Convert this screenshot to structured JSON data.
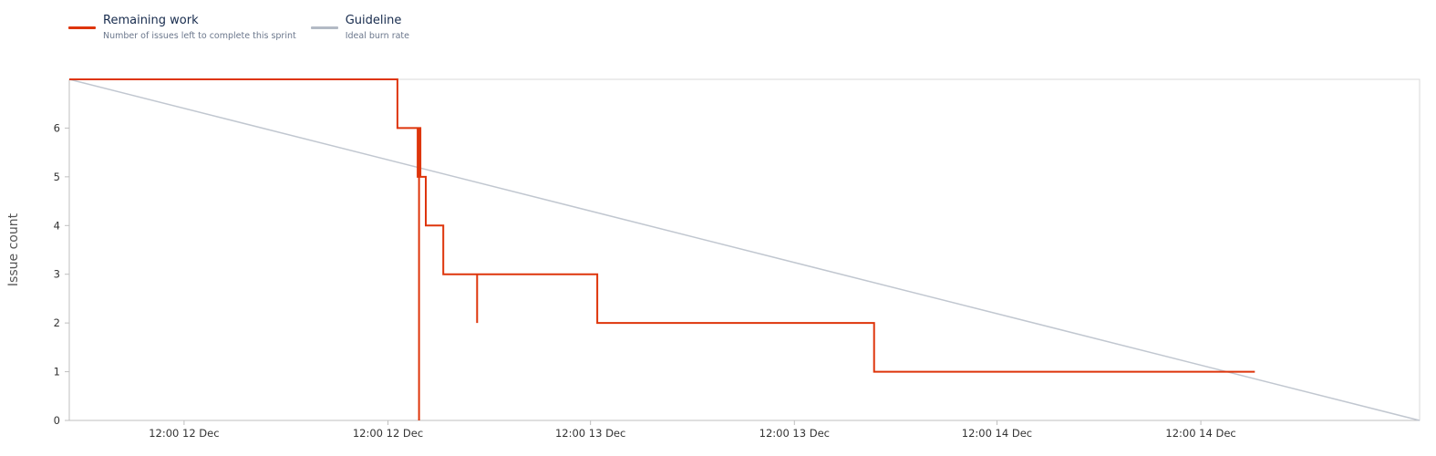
{
  "chart_data": {
    "type": "line",
    "ylabel": "Issue count",
    "ylim": [
      0,
      7
    ],
    "yticks": [
      0,
      1,
      2,
      3,
      4,
      5,
      6
    ],
    "xlim": [
      0,
      1
    ],
    "xticks": [
      {
        "x": 0.085,
        "label": "12:00 12 Dec"
      },
      {
        "x": 0.236,
        "label": "12:00 12 Dec"
      },
      {
        "x": 0.386,
        "label": "12:00 13 Dec"
      },
      {
        "x": 0.537,
        "label": "12:00 13 Dec"
      },
      {
        "x": 0.687,
        "label": "12:00 14 Dec"
      },
      {
        "x": 0.838,
        "label": "12:00 14 Dec"
      }
    ],
    "grid": false,
    "legend_position": "top-left",
    "series": [
      {
        "name": "Remaining work",
        "description": "Number of issues left to complete this sprint",
        "color": "#DE350B",
        "step": true,
        "points": [
          [
            0.0,
            7
          ],
          [
            0.243,
            7
          ],
          [
            0.243,
            6
          ],
          [
            0.258,
            6
          ],
          [
            0.258,
            5
          ],
          [
            0.259,
            5
          ],
          [
            0.259,
            0
          ],
          [
            0.259,
            6
          ],
          [
            0.26,
            6
          ],
          [
            0.26,
            5
          ],
          [
            0.264,
            5
          ],
          [
            0.264,
            4
          ],
          [
            0.277,
            4
          ],
          [
            0.277,
            3
          ],
          [
            0.302,
            3
          ],
          [
            0.302,
            2
          ],
          [
            0.302,
            3
          ],
          [
            0.391,
            3
          ],
          [
            0.391,
            2
          ],
          [
            0.596,
            2
          ],
          [
            0.596,
            1
          ],
          [
            0.878,
            1
          ]
        ]
      },
      {
        "name": "Guideline",
        "description": "Ideal burn rate",
        "color": "#C1C7D0",
        "step": false,
        "points": [
          [
            0.0,
            7
          ],
          [
            1.0,
            0
          ]
        ]
      }
    ]
  }
}
